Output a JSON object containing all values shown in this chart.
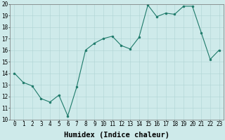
{
  "x": [
    0,
    1,
    2,
    3,
    4,
    5,
    6,
    7,
    8,
    9,
    10,
    11,
    12,
    13,
    14,
    15,
    16,
    17,
    18,
    19,
    20,
    21,
    22,
    23
  ],
  "y": [
    14.0,
    13.2,
    12.9,
    11.8,
    11.5,
    12.1,
    10.3,
    12.8,
    16.0,
    16.6,
    17.0,
    17.2,
    16.4,
    16.1,
    17.1,
    19.9,
    18.9,
    19.2,
    19.1,
    19.8,
    19.8,
    17.5,
    15.2,
    16.0
  ],
  "xlim": [
    -0.5,
    23.5
  ],
  "ylim": [
    10,
    20
  ],
  "xlabel": "Humidex (Indice chaleur)",
  "yticks": [
    10,
    11,
    12,
    13,
    14,
    15,
    16,
    17,
    18,
    19,
    20
  ],
  "xticks": [
    0,
    1,
    2,
    3,
    4,
    5,
    6,
    7,
    8,
    9,
    10,
    11,
    12,
    13,
    14,
    15,
    16,
    17,
    18,
    19,
    20,
    21,
    22,
    23
  ],
  "line_color": "#1e7a6a",
  "marker_color": "#1e7a6a",
  "bg_color": "#ceeaea",
  "grid_color": "#aed4d4",
  "xlabel_fontsize": 7.5,
  "tick_fontsize": 5.5,
  "fig_width": 3.2,
  "fig_height": 2.0,
  "dpi": 100
}
